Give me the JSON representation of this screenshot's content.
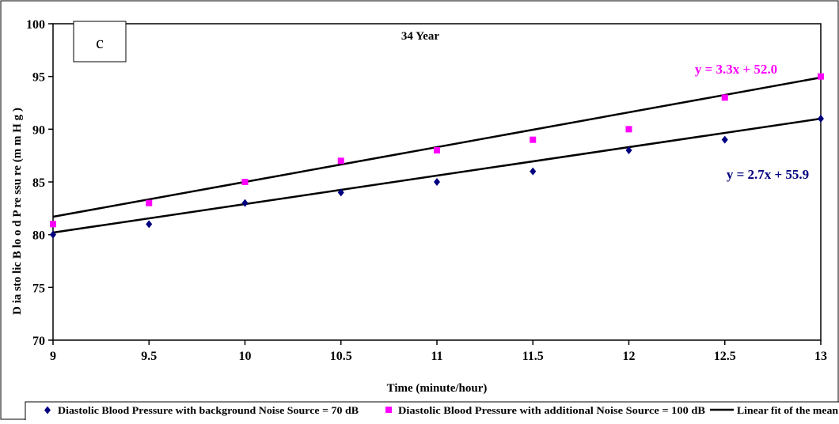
{
  "chart_data": {
    "type": "scatter",
    "title": "34 Year",
    "panel_label": "c",
    "xlabel": "Time (minute/hour)",
    "ylabel": "D ia sto lic  B lo o d  P re ssu re  (m m H g )",
    "xlim": [
      9,
      13
    ],
    "ylim": [
      70,
      100
    ],
    "x_ticks": [
      9,
      9.5,
      10,
      10.5,
      11,
      11.5,
      12,
      12.5,
      13
    ],
    "x_tick_labels": [
      "9",
      "9.5",
      "10",
      "10.5",
      "11",
      "11.5",
      "12",
      "12.5",
      "13"
    ],
    "y_ticks": [
      70,
      75,
      80,
      85,
      90,
      95,
      100
    ],
    "y_tick_labels": [
      "70",
      "75",
      "80",
      "85",
      "90",
      "95",
      "100"
    ],
    "grid": false,
    "legend_position": "bottom",
    "series": [
      {
        "name": "Diastolic Blood Pressure with background Noise Source = 70 dB",
        "marker": "diamond",
        "color": "#000080",
        "x": [
          9,
          9.5,
          10,
          10.5,
          11,
          11.5,
          12,
          12.5,
          13
        ],
        "y": [
          80,
          81,
          83,
          84,
          85,
          86,
          88,
          89,
          91
        ],
        "trend": {
          "slope": 2.7,
          "intercept": 55.9,
          "equation": "y = 2.7x + 55.9",
          "color": "#000080"
        }
      },
      {
        "name": "Diastolic Blood Pressure with additional Noise Source = 100 dB",
        "marker": "square",
        "color": "#ff00ff",
        "x": [
          9,
          9.5,
          10,
          10.5,
          11,
          11.5,
          12,
          12.5,
          13
        ],
        "y": [
          81,
          83,
          85,
          87,
          88,
          89,
          90,
          93,
          95
        ],
        "trend": {
          "slope": 3.3,
          "intercept": 52.0,
          "equation": "y = 3.3x + 52.0",
          "color": "#ff00ff"
        }
      }
    ],
    "fit_line_legend": "Linear fit of the mean",
    "fit_line_color": "#000000"
  }
}
